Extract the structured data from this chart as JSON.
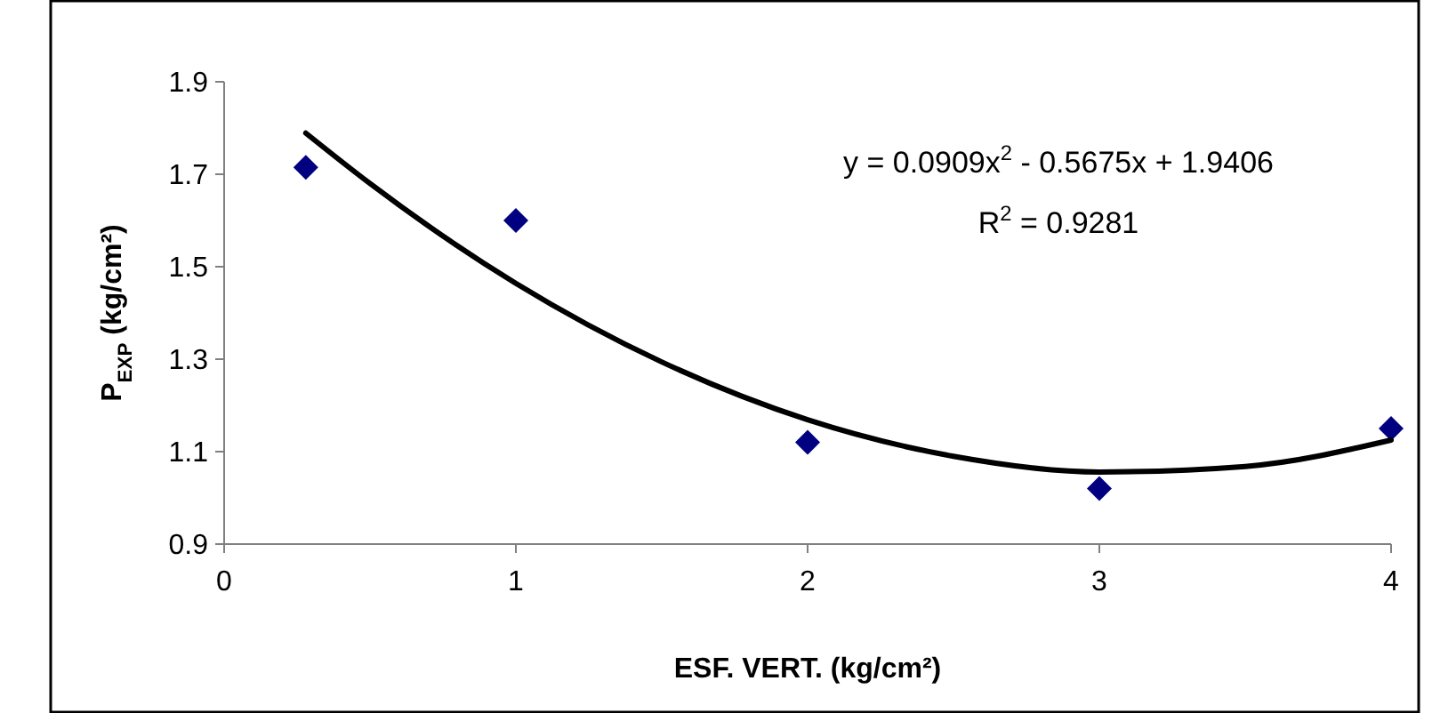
{
  "chart_data": {
    "type": "scatter",
    "xlabel": "ESF. VERT. (kg/cm²)",
    "ylabel": "P$_{EXP}$ (kg/cm²)",
    "xlim": [
      0,
      4
    ],
    "xticks": [
      0,
      1,
      2,
      3,
      4
    ],
    "ylim": [
      0.9,
      1.9
    ],
    "yticks": [
      0.9,
      1.1,
      1.3,
      1.5,
      1.7,
      1.9
    ],
    "grid": false,
    "series": [
      {
        "color": "#000080",
        "marker": "diamond",
        "x": [
          0.28,
          1,
          2,
          3,
          4
        ],
        "values": [
          1.715,
          1.6,
          1.12,
          1.02,
          1.15
        ]
      },
      {
        "type": "line",
        "color": "#000000",
        "marker": "none",
        "line_style": "solid",
        "x": [
          0.28,
          0.5,
          1,
          1.5,
          2,
          2.5,
          3,
          3.5,
          4
        ],
        "values": [
          1.789,
          1.68,
          1.464,
          1.294,
          1.169,
          1.09,
          1.056,
          1.068,
          1.125
        ]
      }
    ],
    "annotations": [
      "y = 0.0909x$^{2}$ - 0.5675x + 1.9406",
      "R$^{2}$ = 0.9281"
    ]
  }
}
